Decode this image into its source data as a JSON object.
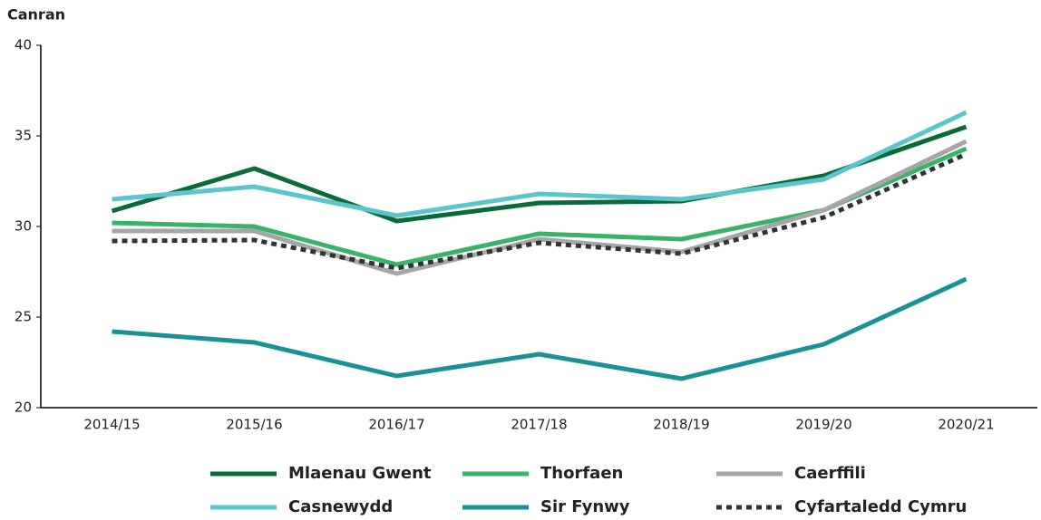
{
  "chart_data": {
    "type": "line",
    "y_axis_label": "Canran",
    "categories": [
      "2014/15",
      "2015/16",
      "2016/17",
      "2017/18",
      "2018/19",
      "2019/20",
      "2020/21"
    ],
    "series": [
      {
        "name": "Mlaenau Gwent",
        "color": "#0b6a3a",
        "values": [
          30.85,
          33.2,
          30.3,
          31.3,
          31.4,
          32.8,
          35.5
        ]
      },
      {
        "name": "Thorfaen",
        "color": "#3ab26a",
        "values": [
          30.2,
          30.0,
          27.9,
          29.6,
          29.3,
          30.9,
          34.3
        ]
      },
      {
        "name": "Caerffili",
        "color": "#a6a6a6",
        "values": [
          29.75,
          29.75,
          27.4,
          29.3,
          28.6,
          30.9,
          34.7
        ]
      },
      {
        "name": "Casnewydd",
        "color": "#5bc4cc",
        "values": [
          31.5,
          32.2,
          30.6,
          31.8,
          31.5,
          32.6,
          36.3
        ]
      },
      {
        "name": "Sir Fynwy",
        "color": "#1a9196",
        "values": [
          24.2,
          23.6,
          21.75,
          22.95,
          21.6,
          23.5,
          27.1
        ]
      },
      {
        "name": "Cyfartaledd Cymru",
        "color": "#333333",
        "dashed": true,
        "values": [
          29.2,
          29.25,
          27.7,
          29.1,
          28.5,
          30.5,
          34.0
        ]
      }
    ],
    "ylim": [
      20,
      40
    ],
    "yticks": [
      20,
      25,
      30,
      35,
      40
    ],
    "grid": false
  }
}
